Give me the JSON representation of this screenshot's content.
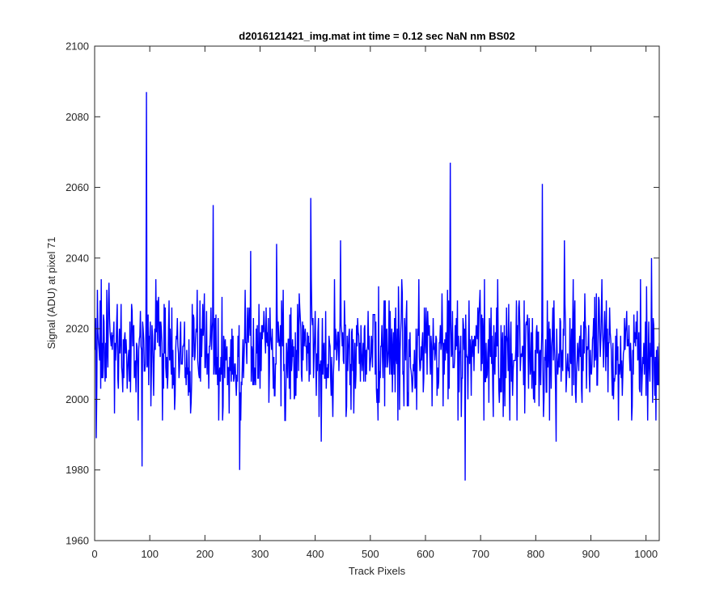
{
  "chart_data": {
    "type": "line",
    "title": "d2016121421_img.mat int time = 0.12 sec  NaN nm BS02",
    "xlabel": "Track Pixels",
    "ylabel": "Signal (ADU) at pixel 71",
    "xlim": [
      0,
      1024
    ],
    "ylim": [
      1960,
      2100
    ],
    "xticks": [
      0,
      100,
      200,
      300,
      400,
      500,
      600,
      700,
      800,
      900,
      1000
    ],
    "yticks": [
      1960,
      1980,
      2000,
      2020,
      2040,
      2060,
      2080,
      2100
    ],
    "grid": false,
    "legend": "none",
    "series": [
      {
        "color": "#0000ff",
        "x_start": 1,
        "x_step": 1,
        "base_mean": 2013,
        "base_spread": 9,
        "n_points": 1024,
        "notable_points": [
          {
            "x": 3,
            "y": 1989
          },
          {
            "x": 5,
            "y": 2031
          },
          {
            "x": 10,
            "y": 2028
          },
          {
            "x": 86,
            "y": 1981
          },
          {
            "x": 94,
            "y": 2087
          },
          {
            "x": 145,
            "y": 1997
          },
          {
            "x": 215,
            "y": 2055
          },
          {
            "x": 263,
            "y": 1980
          },
          {
            "x": 283,
            "y": 2042
          },
          {
            "x": 330,
            "y": 2044
          },
          {
            "x": 392,
            "y": 2057
          },
          {
            "x": 411,
            "y": 1988
          },
          {
            "x": 446,
            "y": 2045
          },
          {
            "x": 645,
            "y": 2067
          },
          {
            "x": 672,
            "y": 1977
          },
          {
            "x": 812,
            "y": 2061
          },
          {
            "x": 837,
            "y": 1988
          },
          {
            "x": 852,
            "y": 2045
          },
          {
            "x": 975,
            "y": 1998
          },
          {
            "x": 1010,
            "y": 2040
          }
        ]
      }
    ]
  }
}
